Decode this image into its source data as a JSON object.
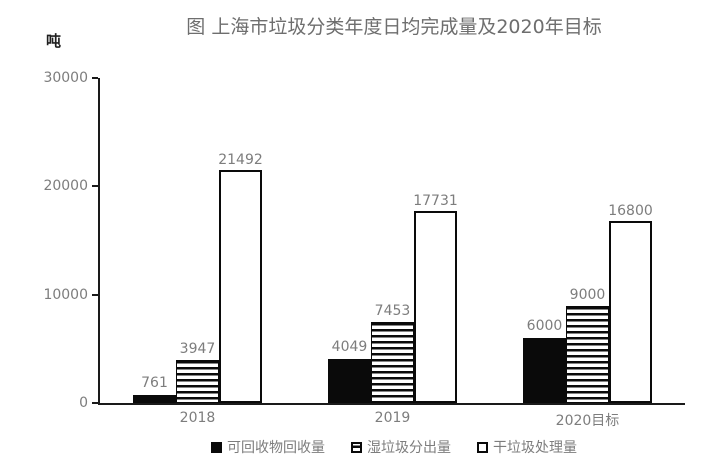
{
  "chart_data": {
    "type": "bar",
    "title": "图 上海市垃圾分类年度日均完成量及2020年目标",
    "ylabel": "吨",
    "xlabel": "",
    "categories": [
      "2018",
      "2019",
      "2020目标"
    ],
    "series": [
      {
        "key": "recyclables-recovered",
        "name": "可回收物回收量",
        "style": "solid-black",
        "values": [
          761,
          4049,
          6000
        ]
      },
      {
        "key": "wet-waste-separated",
        "name": "湿垃圾分出量",
        "style": "horizontal-stripes",
        "values": [
          3947,
          7453,
          9000
        ]
      },
      {
        "key": "dry-waste-processed",
        "name": "干垃圾处理量",
        "style": "white-outline",
        "values": [
          21492,
          17731,
          16800
        ]
      }
    ],
    "ylim": [
      0,
      30000
    ],
    "y_ticks": [
      0,
      10000,
      20000,
      30000
    ],
    "grid": false,
    "legend_position": "bottom",
    "data_labels": true
  },
  "colors": {
    "background": "#ffffff",
    "axis": "#1a1a1a",
    "bar_black": "#0a0a0a",
    "bar_white": "#ffffff",
    "text_gray": "#7d7d7d",
    "title_gray": "#6e6e6e"
  }
}
